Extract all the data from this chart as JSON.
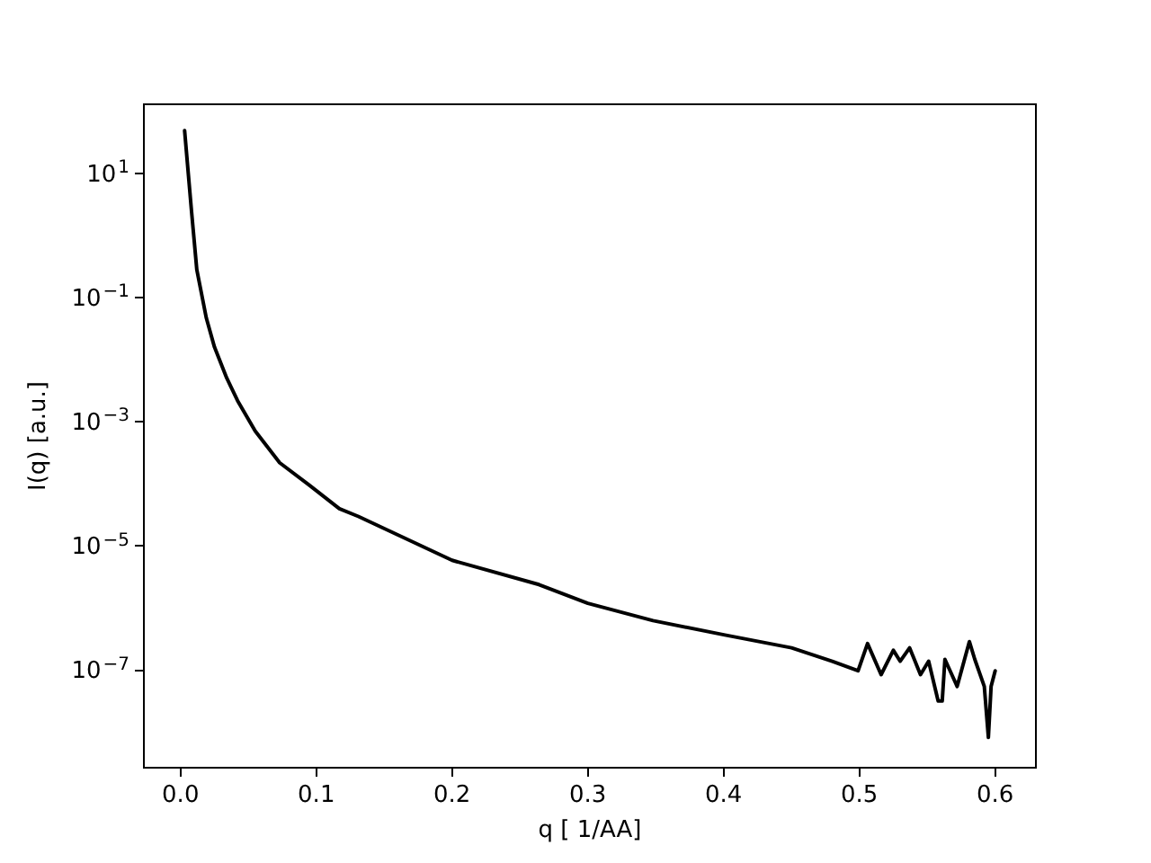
{
  "chart_data": {
    "type": "line",
    "xlabel": "q [ 1/AA]",
    "ylabel": "I(q) [a.u.]",
    "log": "y",
    "marker": "none",
    "xlim": [
      -0.027,
      0.63
    ],
    "ylim": [
      2.7e-09,
      130
    ],
    "xticks": [
      {
        "value": 0,
        "label": "0.0"
      },
      0.1,
      0.2,
      0.3,
      0.4,
      0.5,
      0.6
    ],
    "yticks": [
      {
        "value": 1e-07,
        "label": "10$^{−7}$"
      },
      {
        "value": 1e-05,
        "label": "10$^{−5}$"
      },
      {
        "value": 0.001,
        "label": "10$^{−3}$"
      },
      {
        "value": 0.1,
        "label": "10$^{−1}$"
      },
      {
        "value": 10,
        "label": "10$^{1}$"
      }
    ],
    "series": [
      {
        "color": "#000000",
        "x": [
          0.003,
          0.008,
          0.012,
          0.019,
          0.025,
          0.034,
          0.042,
          0.055,
          0.073,
          0.095,
          0.117,
          0.131,
          0.2,
          0.264,
          0.3,
          0.348,
          0.401,
          0.45,
          0.48,
          0.499,
          0.506,
          0.516,
          0.525,
          0.53,
          0.537,
          0.545,
          0.551,
          0.558,
          0.561,
          0.563,
          0.572,
          0.581,
          0.585,
          0.592,
          0.595,
          0.597,
          0.6
        ],
        "values": [
          49,
          2.6,
          0.28,
          0.047,
          0.016,
          0.0051,
          0.0022,
          0.00071,
          0.00022,
          9.5e-05,
          4e-05,
          3e-05,
          5.9e-06,
          2.4e-06,
          1.2e-06,
          6.3e-07,
          3.7e-07,
          2.3e-07,
          1.4e-07,
          9.8e-08,
          2.7e-07,
          8.5e-08,
          2.1e-07,
          1.4e-07,
          2.3e-07,
          8.5e-08,
          1.4e-07,
          3.2e-08,
          3.2e-08,
          1.5e-07,
          5.5e-08,
          2.9e-07,
          1.5e-07,
          5.5e-08,
          8.3e-09,
          5.5e-08,
          9.8e-08
        ]
      }
    ]
  }
}
